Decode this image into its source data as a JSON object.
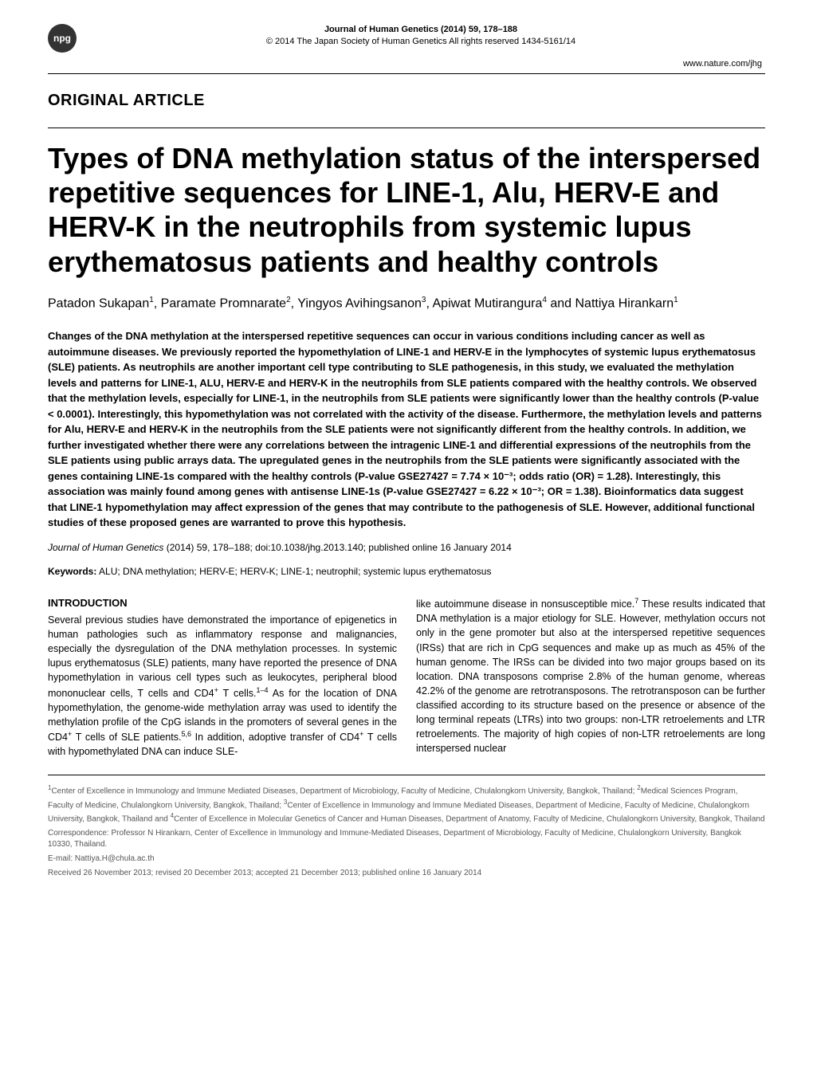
{
  "header": {
    "badge": "npg",
    "journal_line": "Journal of Human Genetics (2014) 59, 178–188",
    "copyright_line": "© 2014 The Japan Society of Human Genetics   All rights reserved 1434-5161/14",
    "url": "www.nature.com/jhg"
  },
  "article_type": "ORIGINAL ARTICLE",
  "title": "Types of DNA methylation status of the interspersed repetitive sequences for LINE-1, Alu, HERV-E and HERV-K in the neutrophils from systemic lupus erythematosus patients and healthy controls",
  "authors_html": "Patadon Sukapan<sup>1</sup>, Paramate Promnarate<sup>2</sup>, Yingyos Avihingsanon<sup>3</sup>, Apiwat Mutirangura<sup>4</sup> and Nattiya Hirankarn<sup>1</sup>",
  "abstract": "Changes of the DNA methylation at the interspersed repetitive sequences can occur in various conditions including cancer as well as autoimmune diseases. We previously reported the hypomethylation of LINE-1 and HERV-E in the lymphocytes of systemic lupus erythematosus (SLE) patients. As neutrophils are another important cell type contributing to SLE pathogenesis, in this study, we evaluated the methylation levels and patterns for LINE-1, ALU, HERV-E and HERV-K in the neutrophils from SLE patients compared with the healthy controls. We observed that the methylation levels, especially for LINE-1, in the neutrophils from SLE patients were significantly lower than the healthy controls (P-value < 0.0001). Interestingly, this hypomethylation was not correlated with the activity of the disease. Furthermore, the methylation levels and patterns for Alu, HERV-E and HERV-K in the neutrophils from the SLE patients were not significantly different from the healthy controls. In addition, we further investigated whether there were any correlations between the intragenic LINE-1 and differential expressions of the neutrophils from the SLE patients using public arrays data. The upregulated genes in the neutrophils from the SLE patients were significantly associated with the genes containing LINE-1s compared with the healthy controls (P-value GSE27427 = 7.74 × 10⁻³; odds ratio (OR) = 1.28). Interestingly, this association was mainly found among genes with antisense LINE-1s (P-value GSE27427 = 6.22 × 10⁻³; OR = 1.38). Bioinformatics data suggest that LINE-1 hypomethylation may affect expression of the genes that may contribute to the pathogenesis of SLE. However, additional functional studies of these proposed genes are warranted to prove this hypothesis.",
  "citation": {
    "journal": "Journal of Human Genetics",
    "rest": " (2014) 59, 178–188; doi:10.1038/jhg.2013.140; published online 16 January 2014"
  },
  "keywords_label": "Keywords:",
  "keywords": " ALU; DNA methylation; HERV-E; HERV-K; LINE-1; neutrophil; systemic lupus erythematosus",
  "intro_heading": "INTRODUCTION",
  "col1_html": "Several previous studies have demonstrated the importance of epigenetics in human pathologies such as inflammatory response and malignancies, especially the dysregulation of the DNA methylation processes. In systemic lupus erythematosus (SLE) patients, many have reported the presence of DNA hypomethylation in various cell types such as leukocytes, peripheral blood mononuclear cells, T cells and CD4<sup>+</sup> T cells.<sup>1–4</sup> As for the location of DNA hypomethylation, the genome-wide methylation array was used to identify the methylation profile of the CpG islands in the promoters of several genes in the CD4<sup>+</sup> T cells of SLE patients.<sup>5,6</sup> In addition, adoptive transfer of CD4<sup>+</sup> T cells with hypomethylated DNA can induce SLE-",
  "col2_html": "like autoimmune disease in nonsusceptible mice.<sup>7</sup> These results indicated that DNA methylation is a major etiology for SLE. However, methylation occurs not only in the gene promoter but also at the interspersed repetitive sequences (IRSs) that are rich in CpG sequences and make up as much as 45% of the human genome. The IRSs can be divided into two major groups based on its location. DNA transposons comprise 2.8% of the human genome, whereas 42.2% of the genome are retrotransposons. The retrotransposon can be further classified according to its structure based on the presence or absence of the long terminal repeats (LTRs) into two groups: non-LTR retroelements and LTR retroelements. The majority of high copies of non-LTR retroelements are long interspersed nuclear",
  "affiliations_html": "<sup>1</sup>Center of Excellence in Immunology and Immune Mediated Diseases, Department of Microbiology, Faculty of Medicine, Chulalongkorn University, Bangkok, Thailand; <sup>2</sup>Medical Sciences Program, Faculty of Medicine, Chulalongkorn University, Bangkok, Thailand; <sup>3</sup>Center of Excellence in Immunology and Immune Mediated Diseases, Department of Medicine, Faculty of Medicine, Chulalongkorn University, Bangkok, Thailand and <sup>4</sup>Center of Excellence in Molecular Genetics of Cancer and Human Diseases, Department of Anatomy, Faculty of Medicine, Chulalongkorn University, Bangkok, Thailand",
  "correspondence": "Correspondence: Professor N Hirankarn, Center of Excellence in Immunology and Immune-Mediated Diseases, Department of Microbiology, Faculty of Medicine, Chulalongkorn University, Bangkok 10330, Thailand.",
  "email": "E-mail: Nattiya.H@chula.ac.th",
  "dates": "Received 26 November 2013; revised 20 December 2013; accepted 21 December 2013; published online 16 January 2014"
}
